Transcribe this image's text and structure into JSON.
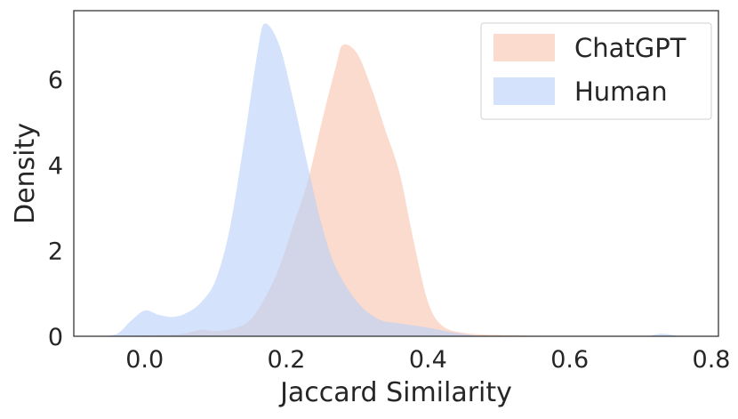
{
  "chart_data": {
    "type": "area",
    "title": "",
    "xlabel": "Jaccard Similarity",
    "ylabel": "Density",
    "xlim": [
      -0.1,
      0.81
    ],
    "ylim": [
      0,
      7.6
    ],
    "xticks": [
      {
        "value": 0.0,
        "label": "0.0"
      },
      {
        "value": 0.2,
        "label": "0.2"
      },
      {
        "value": 0.4,
        "label": "0.4"
      },
      {
        "value": 0.6,
        "label": "0.6"
      },
      {
        "value": 0.8,
        "label": "0.8"
      }
    ],
    "yticks": [
      {
        "value": 0,
        "label": "0"
      },
      {
        "value": 2,
        "label": "2"
      },
      {
        "value": 4,
        "label": "4"
      },
      {
        "value": 6,
        "label": "6"
      }
    ],
    "grid": false,
    "legend_position": "top-right",
    "series": [
      {
        "name": "ChatGPT",
        "color": "#f7c3ae",
        "points": [
          [
            -0.05,
            0.0
          ],
          [
            0.0,
            0.02
          ],
          [
            0.05,
            0.05
          ],
          [
            0.08,
            0.15
          ],
          [
            0.1,
            0.12
          ],
          [
            0.13,
            0.2
          ],
          [
            0.15,
            0.4
          ],
          [
            0.17,
            0.9
          ],
          [
            0.19,
            1.6
          ],
          [
            0.21,
            2.6
          ],
          [
            0.23,
            3.6
          ],
          [
            0.25,
            5.0
          ],
          [
            0.27,
            6.3
          ],
          [
            0.28,
            6.8
          ],
          [
            0.3,
            6.6
          ],
          [
            0.32,
            5.8
          ],
          [
            0.34,
            4.8
          ],
          [
            0.36,
            3.8
          ],
          [
            0.38,
            2.2
          ],
          [
            0.4,
            0.8
          ],
          [
            0.42,
            0.25
          ],
          [
            0.45,
            0.08
          ],
          [
            0.5,
            0.03
          ],
          [
            0.6,
            0.0
          ],
          [
            0.7,
            0.0
          ],
          [
            0.8,
            0.0
          ]
        ]
      },
      {
        "name": "Human",
        "color": "#b7cff8",
        "points": [
          [
            -0.07,
            0.0
          ],
          [
            -0.04,
            0.05
          ],
          [
            -0.02,
            0.35
          ],
          [
            0.0,
            0.6
          ],
          [
            0.02,
            0.5
          ],
          [
            0.04,
            0.45
          ],
          [
            0.06,
            0.55
          ],
          [
            0.08,
            0.8
          ],
          [
            0.1,
            1.3
          ],
          [
            0.12,
            2.5
          ],
          [
            0.14,
            4.5
          ],
          [
            0.16,
            6.7
          ],
          [
            0.17,
            7.3
          ],
          [
            0.19,
            6.8
          ],
          [
            0.21,
            5.5
          ],
          [
            0.23,
            4.0
          ],
          [
            0.25,
            2.6
          ],
          [
            0.27,
            1.6
          ],
          [
            0.3,
            0.8
          ],
          [
            0.33,
            0.4
          ],
          [
            0.36,
            0.3
          ],
          [
            0.4,
            0.2
          ],
          [
            0.45,
            0.05
          ],
          [
            0.5,
            0.0
          ],
          [
            0.6,
            0.0
          ],
          [
            0.7,
            0.0
          ],
          [
            0.73,
            0.06
          ],
          [
            0.76,
            0.0
          ],
          [
            0.8,
            0.0
          ]
        ]
      }
    ]
  }
}
